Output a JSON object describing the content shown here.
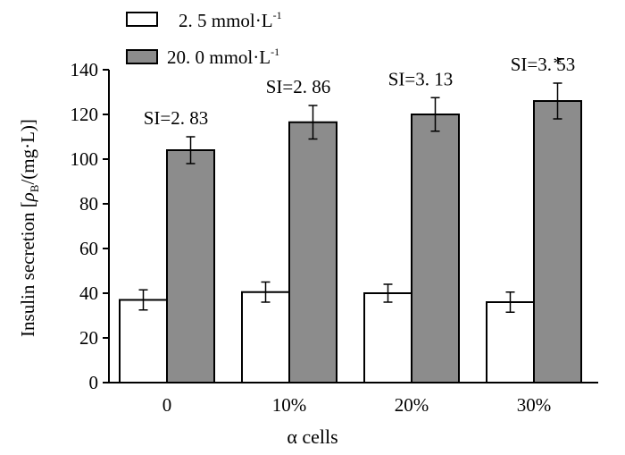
{
  "chart_data": {
    "type": "bar",
    "title": "",
    "xlabel": "α cells",
    "ylabel_parts": {
      "prefix": "Insulin secretion [",
      "rho": "ρ",
      "sub": "B",
      "suffix": "/(mg·L)]"
    },
    "categories": [
      "0",
      "10%",
      "20%",
      "30%"
    ],
    "ylim": [
      0,
      140
    ],
    "yticks": [
      0,
      20,
      40,
      60,
      80,
      100,
      120,
      140
    ],
    "series": [
      {
        "name": "2.5 mmol·L",
        "legend_text": "2. 5  mmol·L",
        "legend_sup": "-1",
        "fill": "#ffffff",
        "values": [
          37,
          40.5,
          40,
          36
        ],
        "errors": [
          4.5,
          4.5,
          4,
          4.5
        ]
      },
      {
        "name": "20.0 mmol·L",
        "legend_text": "20. 0  mmol·L",
        "legend_sup": "-1",
        "fill": "#8c8c8c",
        "values": [
          104,
          116.5,
          120,
          126
        ],
        "errors": [
          6,
          7.5,
          7.5,
          8
        ]
      }
    ],
    "annotations": [
      "SI=2. 83",
      "SI=2. 86",
      "SI=3. 13",
      "SI=3. 53"
    ],
    "significance": [
      "",
      "",
      "",
      "*"
    ]
  }
}
